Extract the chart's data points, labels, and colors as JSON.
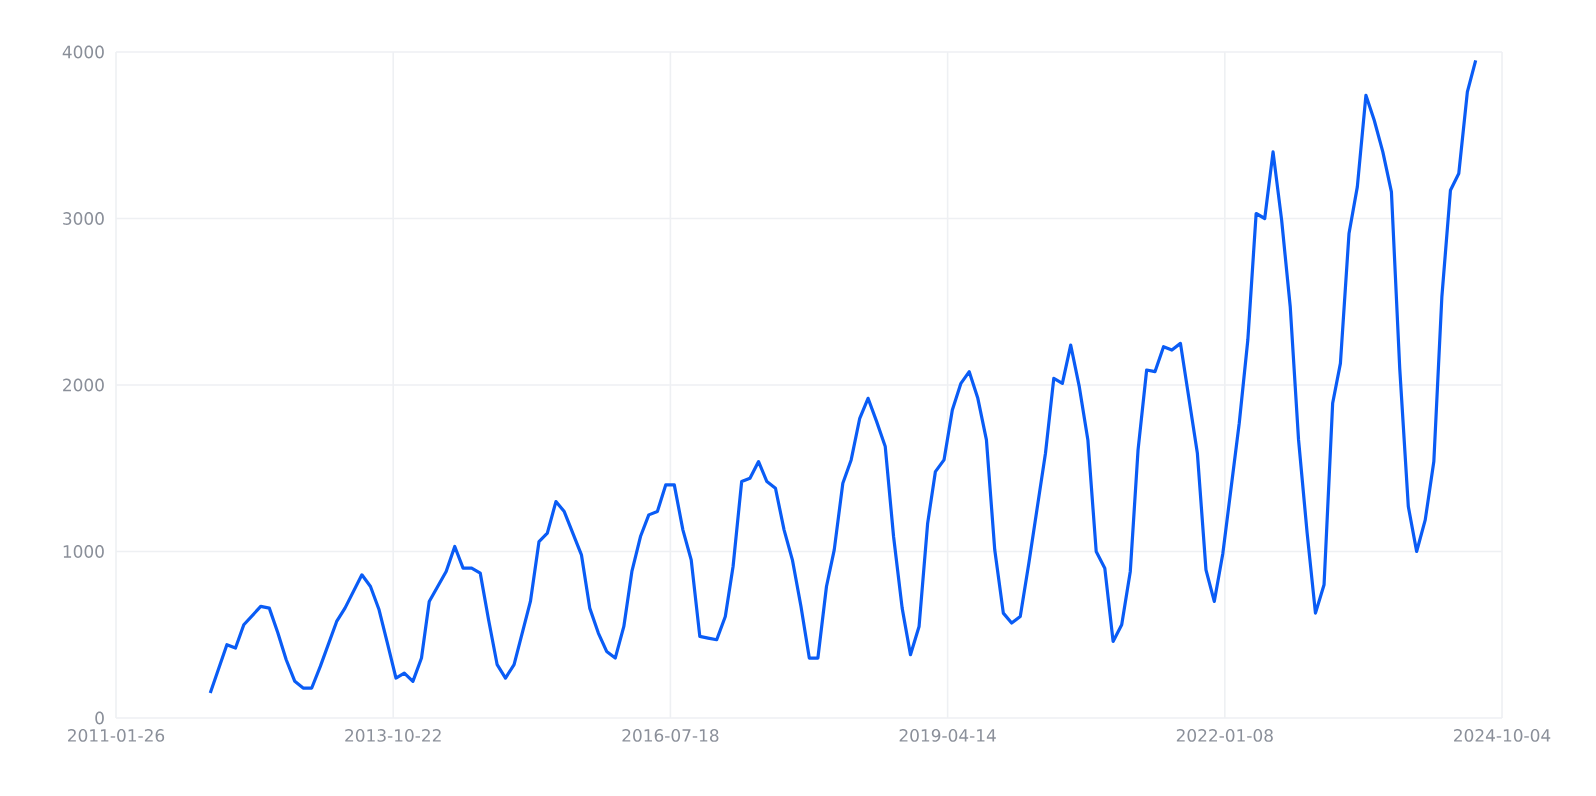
{
  "chart_data": {
    "type": "line",
    "xlim": [
      "2011-01-26",
      "2024-10-04"
    ],
    "xticks": [
      "2011-01-26",
      "2013-10-22",
      "2016-07-18",
      "2019-04-14",
      "2022-01-08",
      "2024-10-04"
    ],
    "ylim": [
      0,
      4000
    ],
    "yticks": [
      0,
      1000,
      2000,
      3000,
      4000
    ],
    "grid": true,
    "legend": false,
    "marker": "none",
    "line_style": "solid",
    "x": [
      "2012-01",
      "2012-03",
      "2012-04",
      "2012-05",
      "2012-07",
      "2012-08",
      "2012-09",
      "2012-10",
      "2012-11",
      "2012-12",
      "2013-01",
      "2013-02",
      "2013-04",
      "2013-05",
      "2013-07",
      "2013-08",
      "2013-09",
      "2013-10",
      "2013-11",
      "2013-12",
      "2014-01",
      "2014-02",
      "2014-03",
      "2014-05",
      "2014-06",
      "2014-07",
      "2014-08",
      "2014-09",
      "2014-10",
      "2014-11",
      "2014-12",
      "2015-01",
      "2015-03",
      "2015-04",
      "2015-05",
      "2015-06",
      "2015-07",
      "2015-09",
      "2015-10",
      "2015-11",
      "2015-12",
      "2016-01",
      "2016-02",
      "2016-03",
      "2016-04",
      "2016-05",
      "2016-06",
      "2016-07",
      "2016-08",
      "2016-09",
      "2016-10",
      "2016-11",
      "2016-12",
      "2017-01",
      "2017-02",
      "2017-03",
      "2017-04",
      "2017-05",
      "2017-06",
      "2017-07",
      "2017-08",
      "2017-09",
      "2017-10",
      "2017-11",
      "2017-12",
      "2018-01",
      "2018-02",
      "2018-03",
      "2018-04",
      "2018-05",
      "2018-06",
      "2018-07",
      "2018-08",
      "2018-09",
      "2018-10",
      "2018-11",
      "2018-12",
      "2019-01",
      "2019-02",
      "2019-03",
      "2019-04",
      "2019-05",
      "2019-06",
      "2019-07",
      "2019-08",
      "2019-09",
      "2019-10",
      "2019-11",
      "2019-12",
      "2020-01",
      "2020-02",
      "2020-04",
      "2020-05",
      "2020-06",
      "2020-07",
      "2020-08",
      "2020-09",
      "2020-10",
      "2020-11",
      "2020-12",
      "2021-01",
      "2021-02",
      "2021-03",
      "2021-04",
      "2021-05",
      "2021-06",
      "2021-07",
      "2021-08",
      "2021-10",
      "2021-11",
      "2021-12",
      "2022-01",
      "2022-03",
      "2022-04",
      "2022-05",
      "2022-06",
      "2022-07",
      "2022-08",
      "2022-09",
      "2022-10",
      "2022-11",
      "2022-12",
      "2023-01",
      "2023-02",
      "2023-03",
      "2023-04",
      "2023-05",
      "2023-06",
      "2023-07",
      "2023-08",
      "2023-09",
      "2023-10",
      "2023-11",
      "2023-12",
      "2024-01",
      "2024-02",
      "2024-03",
      "2024-04",
      "2024-05",
      "2024-06",
      "2024-07"
    ],
    "series": [
      {
        "color": "#0a5cf5",
        "values": [
          150,
          440,
          420,
          560,
          670,
          660,
          510,
          350,
          220,
          180,
          180,
          310,
          580,
          660,
          860,
          790,
          650,
          450,
          240,
          270,
          220,
          360,
          700,
          880,
          1030,
          900,
          900,
          870,
          590,
          320,
          240,
          320,
          700,
          1060,
          1110,
          1300,
          1240,
          980,
          660,
          510,
          400,
          360,
          550,
          880,
          1090,
          1220,
          1240,
          1400,
          1400,
          1130,
          950,
          490,
          480,
          470,
          610,
          910,
          1420,
          1440,
          1540,
          1420,
          1380,
          1130,
          950,
          670,
          360,
          360,
          790,
          1010,
          1410,
          1550,
          1800,
          1920,
          1780,
          1630,
          1090,
          660,
          380,
          550,
          1170,
          1480,
          1550,
          1850,
          2010,
          2080,
          1920,
          1670,
          1010,
          630,
          570,
          610,
          930,
          1590,
          2040,
          2010,
          2240,
          1990,
          1670,
          1000,
          900,
          460,
          560,
          880,
          1610,
          2090,
          2080,
          2230,
          2210,
          2250,
          1590,
          890,
          700,
          990,
          1770,
          2270,
          3030,
          3000,
          3400,
          2990,
          2470,
          1670,
          1110,
          630,
          800,
          1890,
          2130,
          2910,
          3190,
          3740,
          3590,
          3400,
          3160,
          2100,
          1270,
          1000,
          1190,
          1540,
          2530,
          3170,
          3270,
          3760,
          3950
        ]
      }
    ]
  }
}
